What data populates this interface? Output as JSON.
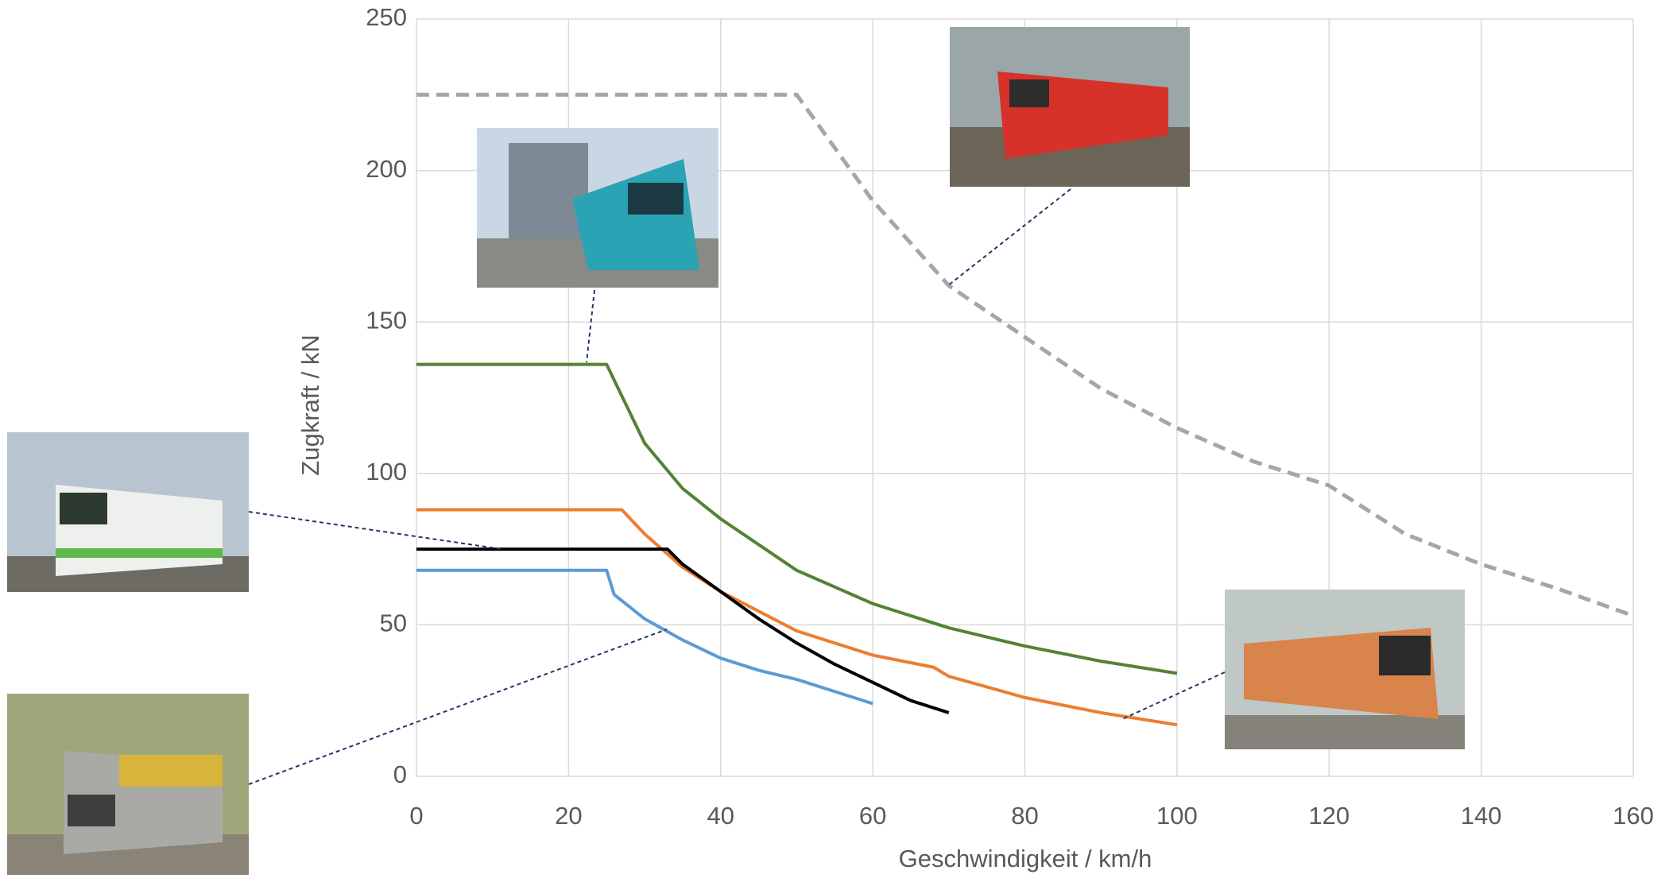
{
  "chart_data": {
    "type": "line",
    "x_label": "Geschwindigkeit  / km/h",
    "y_label": "Zugkraft / kN",
    "xlim": [
      0,
      160
    ],
    "xticks": [
      0,
      20,
      40,
      60,
      80,
      100,
      120,
      140,
      160
    ],
    "ylim": [
      0,
      250
    ],
    "yticks": [
      0,
      50,
      100,
      150,
      200,
      250
    ],
    "grid": true,
    "series": [
      {
        "color": "#a6a6a6",
        "dashed": true,
        "x": [
          0,
          50,
          60,
          70,
          80,
          90,
          100,
          110,
          120,
          130,
          140,
          150,
          160
        ],
        "values": [
          225,
          225,
          190,
          162,
          145,
          128,
          115,
          104,
          96,
          80,
          70,
          62,
          53
        ]
      },
      {
        "color": "#548235",
        "dashed": false,
        "x": [
          0,
          25,
          30,
          35,
          40,
          50,
          60,
          70,
          80,
          90,
          100
        ],
        "values": [
          136,
          136,
          110,
          95,
          85,
          68,
          57,
          49,
          43,
          38,
          34
        ]
      },
      {
        "color": "#ed7d31",
        "dashed": false,
        "x": [
          0,
          27,
          30,
          35,
          40,
          50,
          60,
          68,
          70,
          80,
          90,
          100
        ],
        "values": [
          88,
          88,
          80,
          69,
          61,
          48,
          40,
          36,
          33,
          26,
          21,
          17
        ]
      },
      {
        "color": "#000000",
        "dashed": false,
        "x": [
          0,
          33,
          35,
          40,
          45,
          50,
          55,
          60,
          65,
          70
        ],
        "values": [
          75,
          75,
          70,
          61,
          52,
          44,
          37,
          31,
          25,
          21
        ]
      },
      {
        "color": "#5b9bd5",
        "dashed": false,
        "x": [
          0,
          25,
          26,
          30,
          35,
          40,
          45,
          50,
          55,
          60
        ],
        "values": [
          68,
          68,
          60,
          52,
          45,
          39,
          35,
          32,
          28,
          24
        ]
      }
    ]
  }
}
